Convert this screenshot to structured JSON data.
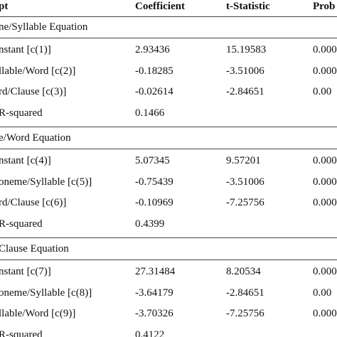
{
  "table": {
    "header": [
      "pt",
      "Coefficient",
      "t-Statistic",
      "Prob"
    ],
    "sections": [
      {
        "title": "ne/Syllable Equation",
        "rows": [
          [
            "nstant [c(1)]",
            "2.93436",
            "15.19583",
            "0.000"
          ],
          [
            "llable/Word [c(2)]",
            "-0.18285",
            "-3.51006",
            "0.000"
          ],
          [
            "rd/Clause [c(3)]",
            "-0.02614",
            "-2.84651",
            "0.00"
          ],
          [
            "R-squared",
            "0.1466"
          ]
        ]
      },
      {
        "title": "e/Word Equation",
        "rows": [
          [
            "nstant [c(4)]",
            "5.07345",
            "9.57201",
            "0.000"
          ],
          [
            "oneme/Syllable [c(5)]",
            "-0.75439",
            "-3.51006",
            "0.000"
          ],
          [
            "rd/Clause [c(6)]",
            "-0.10969",
            "-7.25756",
            "0.000"
          ],
          [
            "R-squared",
            "0.4399"
          ]
        ]
      },
      {
        "title": "Clause Equation",
        "rows": [
          [
            "nstant [c(7)]",
            "27.31484",
            "8.20534",
            "0.000"
          ],
          [
            "oneme/Syllable [c(8)]",
            "-3.64179",
            "-2.84651",
            "0.00"
          ],
          [
            "llable/Word [c(9)]",
            "-3.70326",
            "-7.25756",
            "0.000"
          ],
          [
            "R-squared",
            "0.4122"
          ]
        ]
      }
    ]
  }
}
